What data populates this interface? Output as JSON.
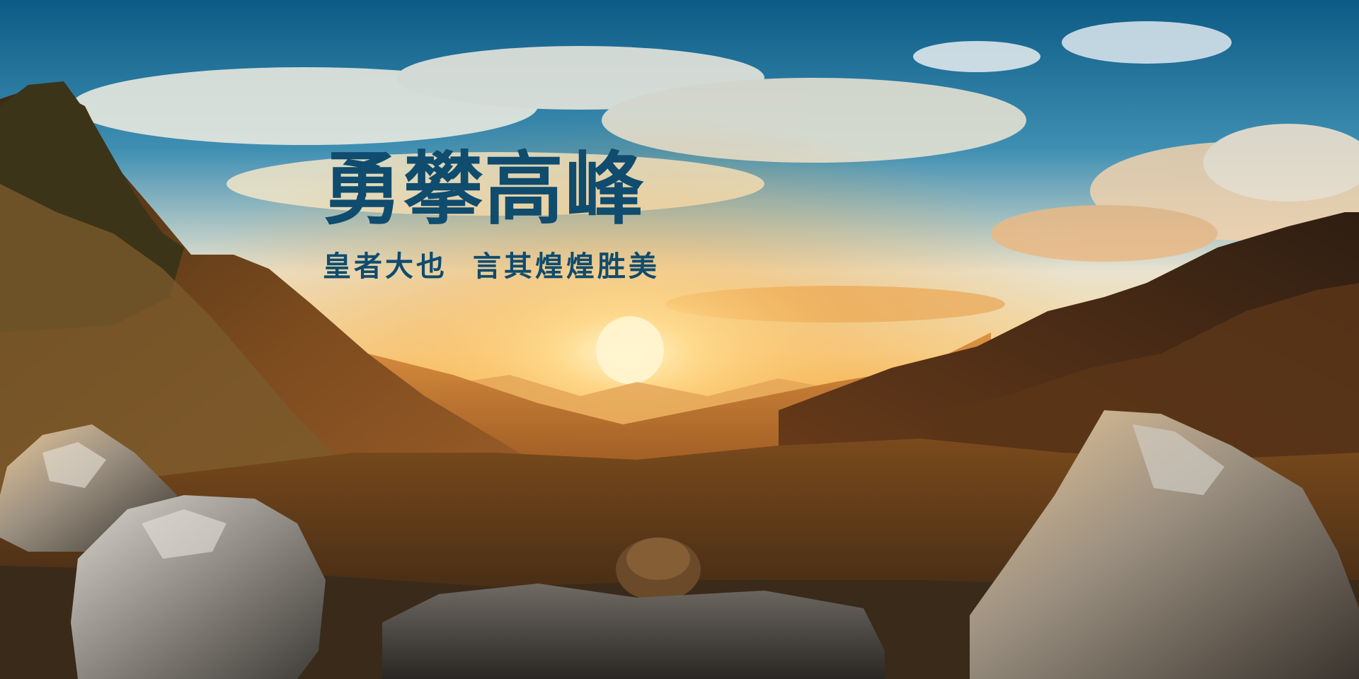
{
  "banner": {
    "title": "勇攀高峰",
    "subtitle": "皇者大也  言其煌煌胜美",
    "colors": {
      "title": "#0f4c6e",
      "sky_top": "#0d5f8a",
      "sun": "#ffd27a",
      "mountain": "#5a3a1c"
    }
  }
}
